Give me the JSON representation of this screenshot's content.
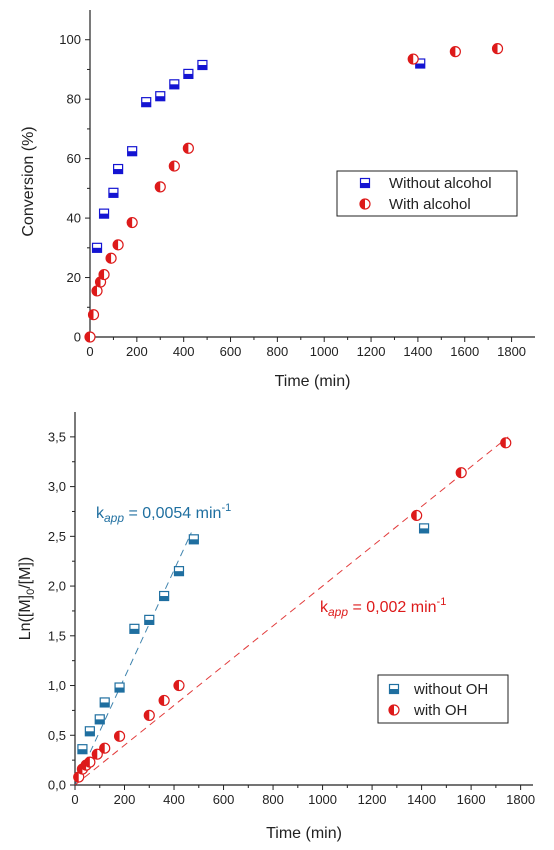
{
  "chart_data": [
    {
      "type": "scatter",
      "xlabel": "Time (min)",
      "ylabel": "Conversion (%)",
      "xlim": [
        0,
        1900
      ],
      "ylim": [
        0,
        110
      ],
      "xticks": [
        0,
        200,
        400,
        600,
        800,
        1000,
        1200,
        1400,
        1600,
        1800
      ],
      "yticks": [
        0,
        20,
        40,
        60,
        80,
        100
      ],
      "legend_position": "right-middle",
      "series": [
        {
          "name": "Without alcohol",
          "color": "#1414d2",
          "marker": "square-half-bottom",
          "x": [
            30,
            60,
            100,
            120,
            180,
            240,
            300,
            360,
            420,
            480,
            1410
          ],
          "y": [
            30,
            41.5,
            48.5,
            56.5,
            62.5,
            79,
            81,
            85,
            88.5,
            91.5,
            92
          ]
        },
        {
          "name": "With alcohol",
          "color": "#dd1a1a",
          "marker": "circle-half-left",
          "x": [
            0,
            15,
            30,
            45,
            60,
            90,
            120,
            180,
            300,
            360,
            420,
            1380,
            1560,
            1740
          ],
          "y": [
            0,
            7.5,
            15.5,
            18.5,
            21,
            26.5,
            31,
            38.5,
            50.5,
            57.5,
            63.5,
            93.5,
            96,
            97
          ]
        }
      ]
    },
    {
      "type": "scatter",
      "xlabel": "Time (min)",
      "ylabel": "Ln([M]0/[M])",
      "ylabel_parts": [
        "Ln([M]",
        "0",
        "/[M])"
      ],
      "xlim": [
        0,
        1850
      ],
      "ylim": [
        0,
        3.75
      ],
      "xticks": [
        0,
        200,
        400,
        600,
        800,
        1000,
        1200,
        1400,
        1600,
        1800
      ],
      "yticks": [
        0,
        0.5,
        1.0,
        1.5,
        2.0,
        2.5,
        3.0,
        3.5
      ],
      "ytick_labels": [
        "0,0",
        "0,5",
        "1,0",
        "1,5",
        "2,0",
        "2,5",
        "3,0",
        "3,5"
      ],
      "legend_position": "bottom-right",
      "series": [
        {
          "name": "without OH",
          "color": "#1f6fa0",
          "marker": "square-half-bottom",
          "x": [
            30,
            60,
            100,
            120,
            180,
            240,
            300,
            360,
            420,
            480,
            1410
          ],
          "y": [
            0.36,
            0.54,
            0.66,
            0.83,
            0.98,
            1.57,
            1.66,
            1.9,
            2.15,
            2.47,
            2.58
          ]
        },
        {
          "name": "with OH",
          "color": "#dd1a1a",
          "marker": "circle-half-left",
          "x": [
            15,
            30,
            45,
            60,
            90,
            120,
            180,
            300,
            360,
            420,
            1380,
            1560,
            1740
          ],
          "y": [
            0.08,
            0.16,
            0.2,
            0.23,
            0.31,
            0.37,
            0.49,
            0.7,
            0.85,
            1.0,
            2.71,
            3.14,
            3.44
          ]
        }
      ],
      "fit_lines": [
        {
          "color": "#1f6fa0",
          "slope": 0.0054,
          "label_main": "k",
          "label_sub": "app",
          "label_value": " = 0,0054 min",
          "label_exp": "-1",
          "x_range": [
            0,
            470
          ]
        },
        {
          "color": "#dd1a1a",
          "slope": 0.002,
          "label_main": "k",
          "label_sub": "app",
          "label_value": " = 0,002 min",
          "label_exp": "-1",
          "x_range": [
            0,
            1750
          ]
        }
      ]
    }
  ]
}
